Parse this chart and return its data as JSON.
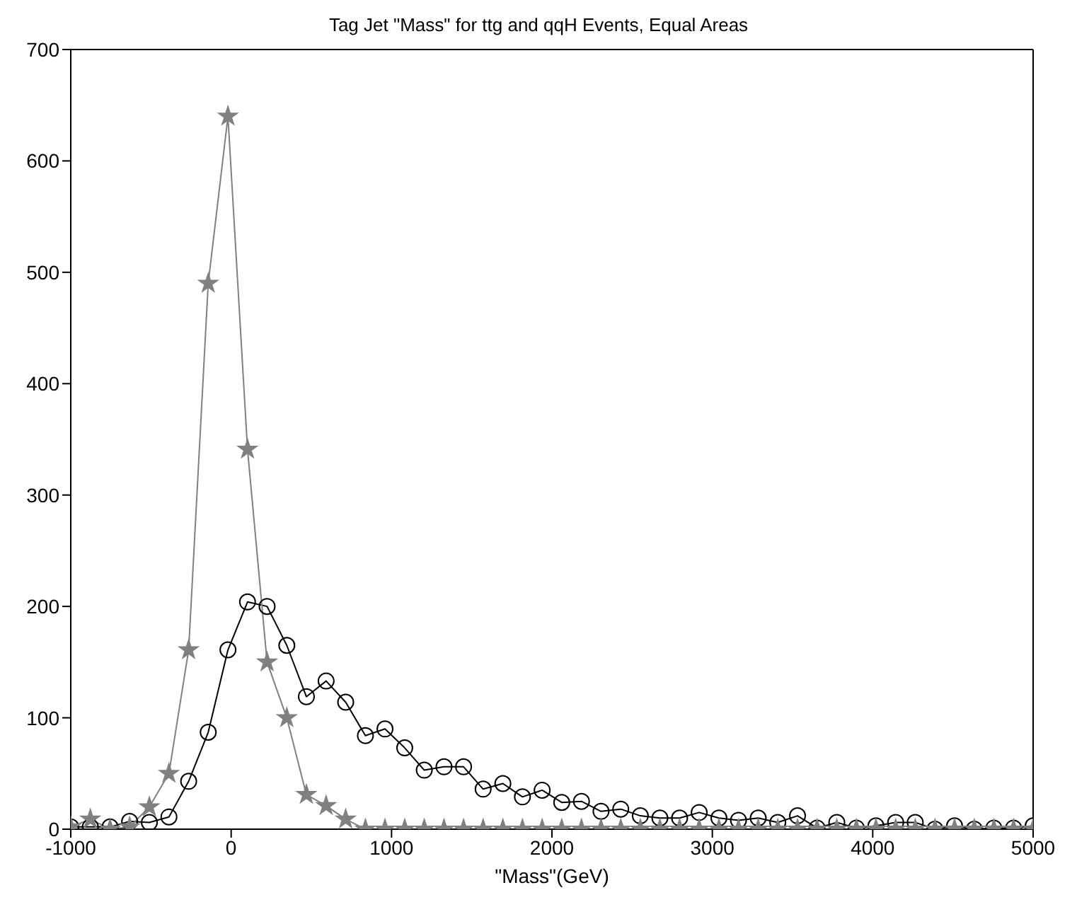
{
  "chart_data": {
    "type": "line",
    "title": "Tag Jet \"Mass\" for ttg and qqH Events, Equal Areas",
    "xlabel": "\"Mass\"(GeV)",
    "x": [
      -1000,
      -878,
      -755,
      -633,
      -510,
      -388,
      -265,
      -143,
      -20,
      102,
      224,
      347,
      469,
      592,
      714,
      837,
      959,
      1082,
      1204,
      1327,
      1449,
      1571,
      1694,
      1816,
      1939,
      2061,
      2184,
      2306,
      2429,
      2551,
      2673,
      2796,
      2918,
      3041,
      3163,
      3286,
      3408,
      3531,
      3653,
      3776,
      3898,
      4020,
      4143,
      4265,
      4388,
      4510,
      4633,
      4755,
      4878,
      5000
    ],
    "series": [
      {
        "color": "#000000",
        "marker": "circle",
        "values": [
          2,
          2,
          2,
          7,
          6,
          11,
          43,
          87,
          161,
          204,
          200,
          165,
          119,
          133,
          114,
          84,
          90,
          73,
          53,
          56,
          56,
          36,
          41,
          29,
          35,
          24,
          25,
          16,
          18,
          12,
          10,
          10,
          15,
          10,
          8,
          10,
          6,
          12,
          1,
          6,
          1,
          3,
          6,
          6,
          0,
          3,
          0,
          1,
          1,
          3
        ]
      },
      {
        "color": "#808080",
        "marker": "star",
        "values": [
          2,
          9,
          0,
          2,
          20,
          50,
          161,
          490,
          640,
          341,
          150,
          100,
          31,
          21,
          9,
          0,
          0,
          0,
          0,
          0,
          0,
          0,
          0,
          0,
          0,
          0,
          0,
          0,
          0,
          0,
          0,
          0,
          0,
          0,
          0,
          0,
          0,
          0,
          0,
          0,
          0,
          0,
          0,
          0,
          0,
          0,
          0,
          0,
          0,
          0
        ]
      }
    ],
    "xlim": [
      -1000,
      5000
    ],
    "xticks": [
      -1000,
      0,
      1000,
      2000,
      3000,
      4000,
      5000
    ],
    "ylim": [
      0,
      700
    ],
    "yticks": [
      0,
      100,
      200,
      300,
      400,
      500,
      600,
      700
    ],
    "grid": false,
    "legend": false
  }
}
